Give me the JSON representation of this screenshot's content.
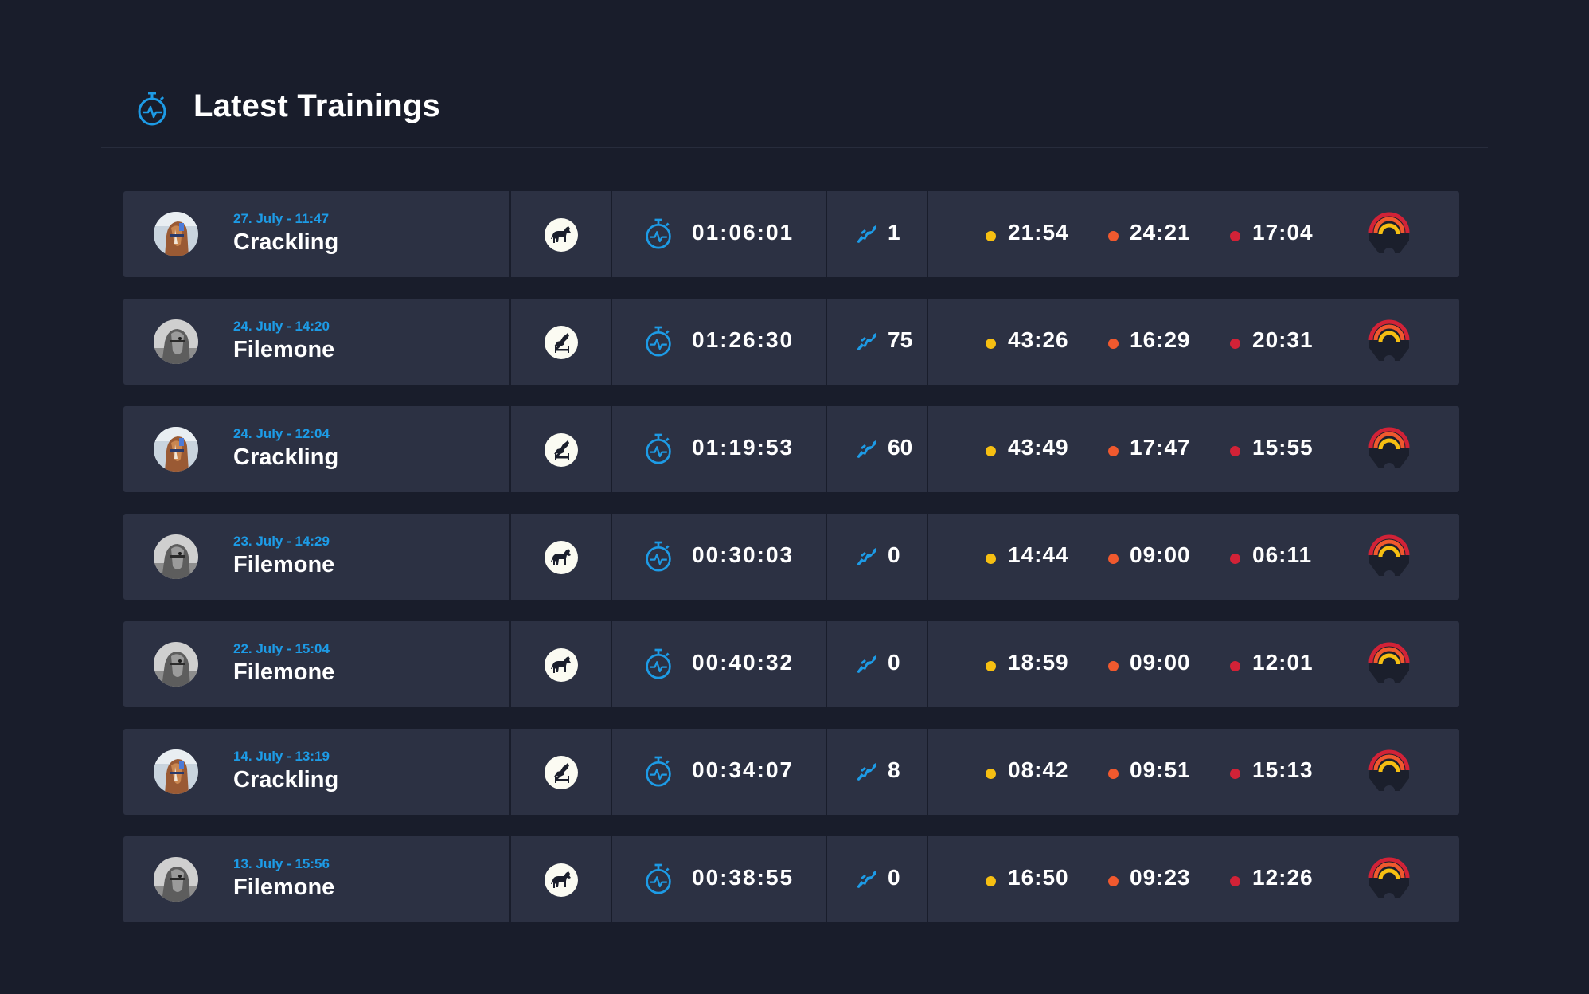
{
  "header": {
    "title": "Latest Trainings",
    "icon": "stopwatch-icon"
  },
  "colors": {
    "accent": "#1d9be6",
    "walk": "#f6bf12",
    "trot": "#f0592e",
    "canter": "#d22237",
    "row_bg": "#2c3143",
    "page_bg": "#191d2b"
  },
  "trainings": [
    {
      "date": "27. July - 11:47",
      "horse": "Crackling",
      "avatar": "chestnut",
      "type": "flatwork",
      "duration": "01:06:01",
      "jumps": "1",
      "walk": "21:54",
      "trot": "24:21",
      "canter": "17:04"
    },
    {
      "date": "24. July - 14:20",
      "horse": "Filemone",
      "avatar": "grey",
      "type": "jumping",
      "duration": "01:26:30",
      "jumps": "75",
      "walk": "43:26",
      "trot": "16:29",
      "canter": "20:31"
    },
    {
      "date": "24. July - 12:04",
      "horse": "Crackling",
      "avatar": "chestnut",
      "type": "jumping",
      "duration": "01:19:53",
      "jumps": "60",
      "walk": "43:49",
      "trot": "17:47",
      "canter": "15:55"
    },
    {
      "date": "23. July - 14:29",
      "horse": "Filemone",
      "avatar": "grey",
      "type": "flatwork",
      "duration": "00:30:03",
      "jumps": "0",
      "walk": "14:44",
      "trot": "09:00",
      "canter": "06:11"
    },
    {
      "date": "22. July - 15:04",
      "horse": "Filemone",
      "avatar": "grey",
      "type": "flatwork",
      "duration": "00:40:32",
      "jumps": "0",
      "walk": "18:59",
      "trot": "09:00",
      "canter": "12:01"
    },
    {
      "date": "14. July - 13:19",
      "horse": "Crackling",
      "avatar": "chestnut",
      "type": "jumping",
      "duration": "00:34:07",
      "jumps": "8",
      "walk": "08:42",
      "trot": "09:51",
      "canter": "15:13"
    },
    {
      "date": "13. July - 15:56",
      "horse": "Filemone",
      "avatar": "grey",
      "type": "flatwork",
      "duration": "00:38:55",
      "jumps": "0",
      "walk": "16:50",
      "trot": "09:23",
      "canter": "12:26"
    }
  ]
}
